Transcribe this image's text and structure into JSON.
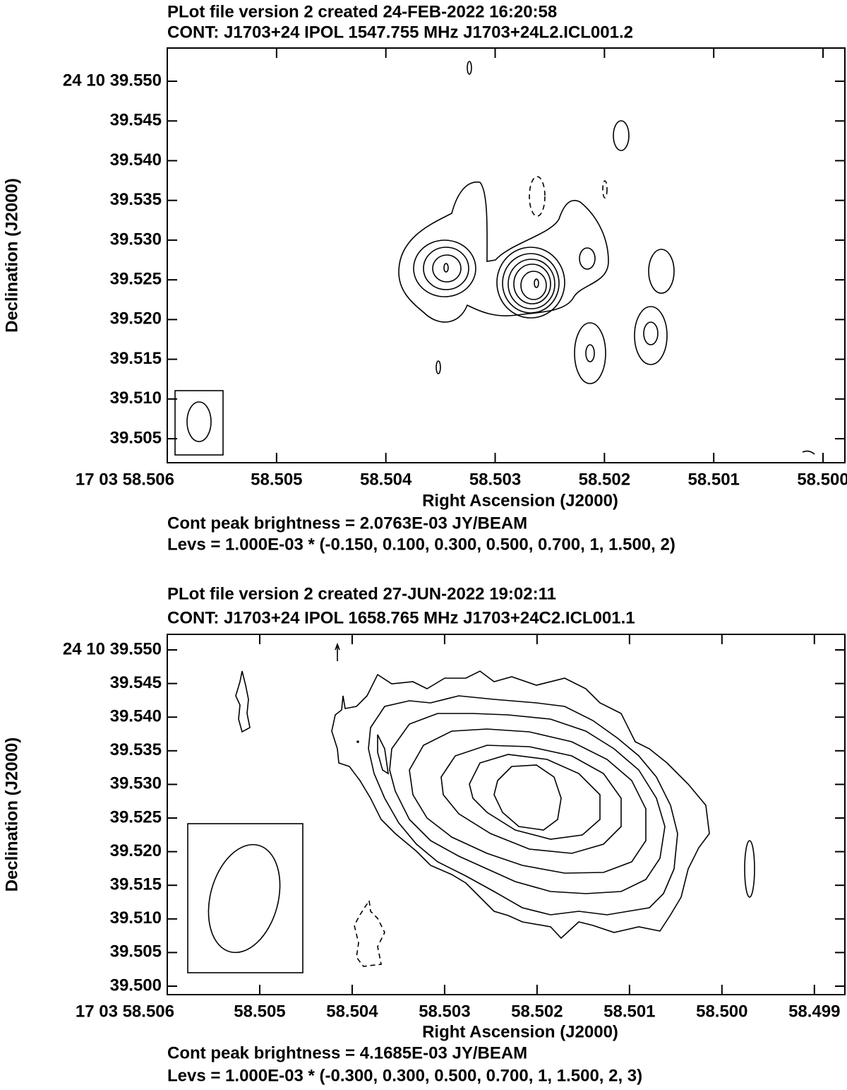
{
  "chart_data": [
    {
      "type": "contour",
      "title": "PLot file version 2  created 24-FEB-2022 16:20:58",
      "subtitle": "CONT: J1703+24  IPOL  1547.755 MHz  J1703+24L2.ICL001.2",
      "x_label": "Right Ascension (J2000)",
      "y_label": "Declination (J2000)",
      "annotations": [
        "Cont peak brightness = 2.0763E-03 JY/BEAM",
        "Levs = 1.000E-03 * (-0.150, 0.100, 0.300, 0.500, 0.700, 1, 1.500, 2)"
      ],
      "xlim": [
        58.506,
        58.4998
      ],
      "ylim": [
        39.50198,
        39.55418
      ],
      "xticks": [
        {
          "value": 58.506,
          "label": "17 03 58.506"
        },
        {
          "value": 58.505,
          "label": "58.505"
        },
        {
          "value": 58.504,
          "label": "58.504"
        },
        {
          "value": 58.503,
          "label": "58.503"
        },
        {
          "value": 58.502,
          "label": "58.502"
        },
        {
          "value": 58.501,
          "label": "58.501"
        },
        {
          "value": 58.5,
          "label": "58.500"
        }
      ],
      "yticks": [
        {
          "value": 39.55,
          "label": "24 10 39.550"
        },
        {
          "value": 39.545,
          "label": "39.545"
        },
        {
          "value": 39.54,
          "label": "39.540"
        },
        {
          "value": 39.535,
          "label": "39.535"
        },
        {
          "value": 39.53,
          "label": "39.530"
        },
        {
          "value": 39.525,
          "label": "39.525"
        },
        {
          "value": 39.52,
          "label": "39.520"
        },
        {
          "value": 39.515,
          "label": "39.515"
        },
        {
          "value": 39.51,
          "label": "39.510"
        },
        {
          "value": 39.505,
          "label": "39.505"
        }
      ]
    },
    {
      "type": "contour",
      "title": "PLot file version 2  created 27-JUN-2022 19:02:11",
      "subtitle": "CONT: J1703+24  IPOL  1658.765 MHz  J1703+24C2.ICL001.1",
      "x_label": "Right Ascension (J2000)",
      "y_label": "Declination (J2000)",
      "annotations": [
        "Cont peak brightness = 4.1685E-03 JY/BEAM",
        "Levs = 1.000E-03 * (-0.300, 0.300, 0.500, 0.700, 1, 1.500, 2, 3)"
      ],
      "xlim": [
        58.506,
        58.49867
      ],
      "ylim": [
        39.49874,
        39.55231
      ],
      "xticks": [
        {
          "value": 58.506,
          "label": "17 03 58.506"
        },
        {
          "value": 58.505,
          "label": "58.505"
        },
        {
          "value": 58.504,
          "label": "58.504"
        },
        {
          "value": 58.503,
          "label": "58.503"
        },
        {
          "value": 58.502,
          "label": "58.502"
        },
        {
          "value": 58.501,
          "label": "58.501"
        },
        {
          "value": 58.5,
          "label": "58.500"
        },
        {
          "value": 58.499,
          "label": "58.499"
        }
      ],
      "yticks": [
        {
          "value": 39.55,
          "label": "24 10 39.550"
        },
        {
          "value": 39.545,
          "label": "39.545"
        },
        {
          "value": 39.54,
          "label": "39.540"
        },
        {
          "value": 39.535,
          "label": "39.535"
        },
        {
          "value": 39.53,
          "label": "39.530"
        },
        {
          "value": 39.525,
          "label": "39.525"
        },
        {
          "value": 39.52,
          "label": "39.520"
        },
        {
          "value": 39.515,
          "label": "39.515"
        },
        {
          "value": 39.51,
          "label": "39.510"
        },
        {
          "value": 39.505,
          "label": "39.505"
        },
        {
          "value": 39.5,
          "label": "39.500"
        }
      ]
    }
  ]
}
